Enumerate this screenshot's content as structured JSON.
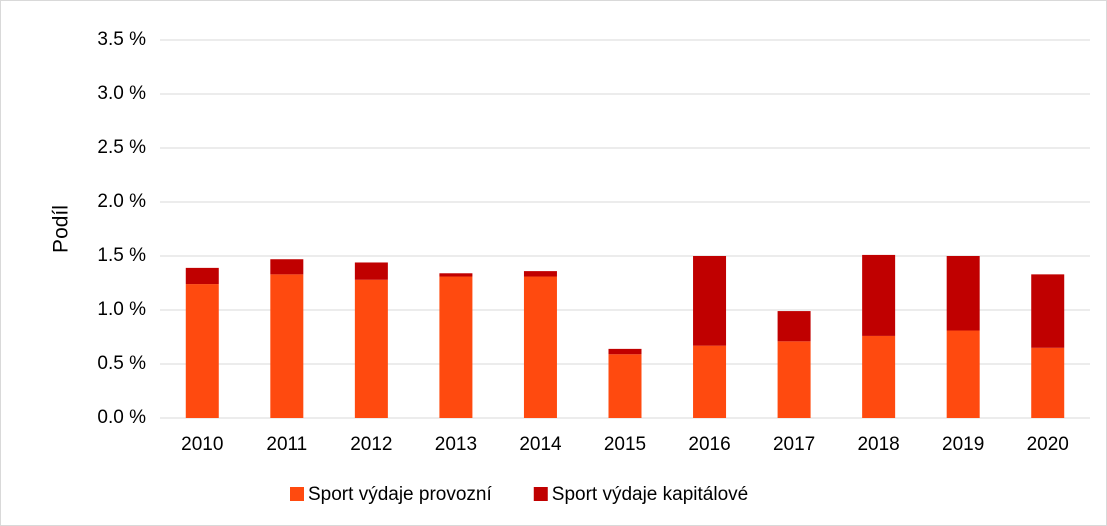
{
  "chart_data": {
    "type": "stacked_bar",
    "y_label": "Podíl",
    "categories": [
      "2010",
      "2011",
      "2012",
      "2013",
      "2014",
      "2015",
      "2016",
      "2017",
      "2018",
      "2019",
      "2020"
    ],
    "series": [
      {
        "name": "Sport výdaje provozní",
        "color": "#ff4a0f",
        "values": [
          1.24,
          1.33,
          1.28,
          1.31,
          1.31,
          0.59,
          0.67,
          0.71,
          0.76,
          0.81,
          0.65
        ]
      },
      {
        "name": "Sport výdaje kapitálové",
        "color": "#c00000",
        "values": [
          0.15,
          0.14,
          0.16,
          0.03,
          0.05,
          0.05,
          0.83,
          0.28,
          0.75,
          0.69,
          0.68
        ]
      }
    ],
    "ylim": [
      0,
      3.5
    ],
    "yticks": [
      {
        "value": 0,
        "label": "0.0 %"
      },
      {
        "value": 0.5,
        "label": "0.5 %"
      },
      {
        "value": 1,
        "label": "1.0 %"
      },
      {
        "value": 1.5,
        "label": "1.5 %"
      },
      {
        "value": 2,
        "label": "2.0 %"
      },
      {
        "value": 2.5,
        "label": "2.5 %"
      },
      {
        "value": 3,
        "label": "3.0 %"
      },
      {
        "value": 3.5,
        "label": "3.5 %"
      }
    ],
    "grid": true,
    "legend": "bottom"
  }
}
